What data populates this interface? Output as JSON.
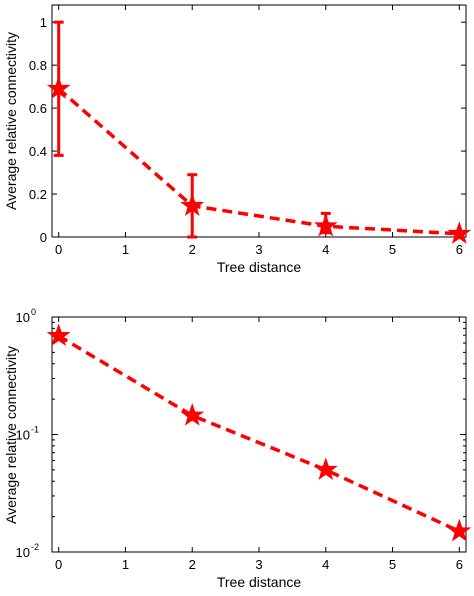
{
  "chart_data": [
    {
      "type": "line",
      "xlabel": "Tree distance",
      "ylabel": "Average relative connectivity",
      "xlim": [
        -0.1,
        6.1
      ],
      "ylim": [
        0,
        1.08
      ],
      "y_scale": "linear",
      "x_ticks": [
        "0",
        "1",
        "2",
        "3",
        "4",
        "5",
        "6"
      ],
      "y_ticks": [
        "0",
        "0.2",
        "0.4",
        "0.6",
        "0.8",
        "1"
      ],
      "series": [
        {
          "x": [
            0,
            2,
            4,
            6
          ],
          "y": [
            0.69,
            0.145,
            0.05,
            0.015
          ],
          "err_low": [
            0.38,
            0.0,
            0.02,
            0.005
          ],
          "err_high": [
            1.0,
            0.29,
            0.11,
            0.025
          ],
          "color": "#ff0000",
          "marker": "star",
          "line_style": "dashed"
        }
      ],
      "grid": false
    },
    {
      "type": "line",
      "xlabel": "Tree distance",
      "ylabel": "Average relative connectivity",
      "xlim": [
        -0.1,
        6.1
      ],
      "ylim": [
        0.01,
        1.0
      ],
      "y_scale": "log",
      "x_ticks": [
        "0",
        "1",
        "2",
        "3",
        "4",
        "5",
        "6"
      ],
      "y_ticks": [
        {
          "base": "10",
          "exp": "0"
        },
        {
          "base": "10",
          "exp": "-1"
        },
        {
          "base": "10",
          "exp": "-2"
        }
      ],
      "series": [
        {
          "x": [
            0,
            2,
            4,
            6
          ],
          "y": [
            0.69,
            0.145,
            0.05,
            0.015
          ],
          "color": "#ff0000",
          "marker": "star",
          "line_style": "dashed"
        }
      ],
      "grid": false
    }
  ]
}
